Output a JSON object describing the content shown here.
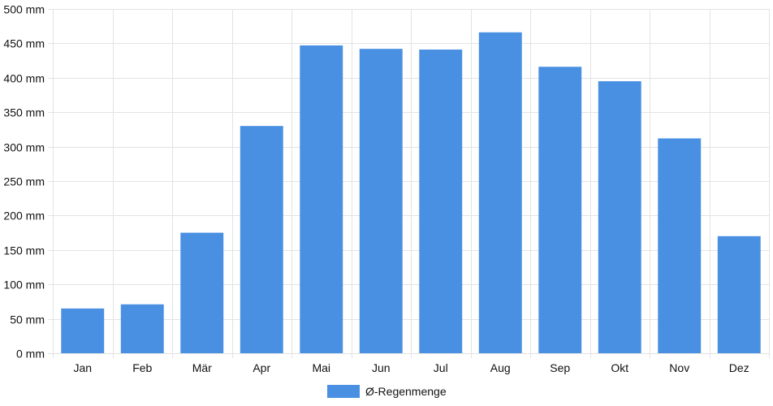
{
  "chart_data": {
    "type": "bar",
    "categories": [
      "Jan",
      "Feb",
      "Mär",
      "Apr",
      "Mai",
      "Jun",
      "Jul",
      "Aug",
      "Sep",
      "Okt",
      "Nov",
      "Dez"
    ],
    "series": [
      {
        "name": "Ø-Regenmenge",
        "values": [
          65,
          71,
          175,
          330,
          447,
          442,
          441,
          466,
          416,
          395,
          312,
          170
        ],
        "color": "#4a90e2"
      }
    ],
    "y_unit": "mm",
    "ylim": [
      0,
      500
    ],
    "y_ticks": [
      0,
      50,
      100,
      150,
      200,
      250,
      300,
      350,
      400,
      450,
      500
    ],
    "grid": true,
    "legend_position": "bottom"
  }
}
